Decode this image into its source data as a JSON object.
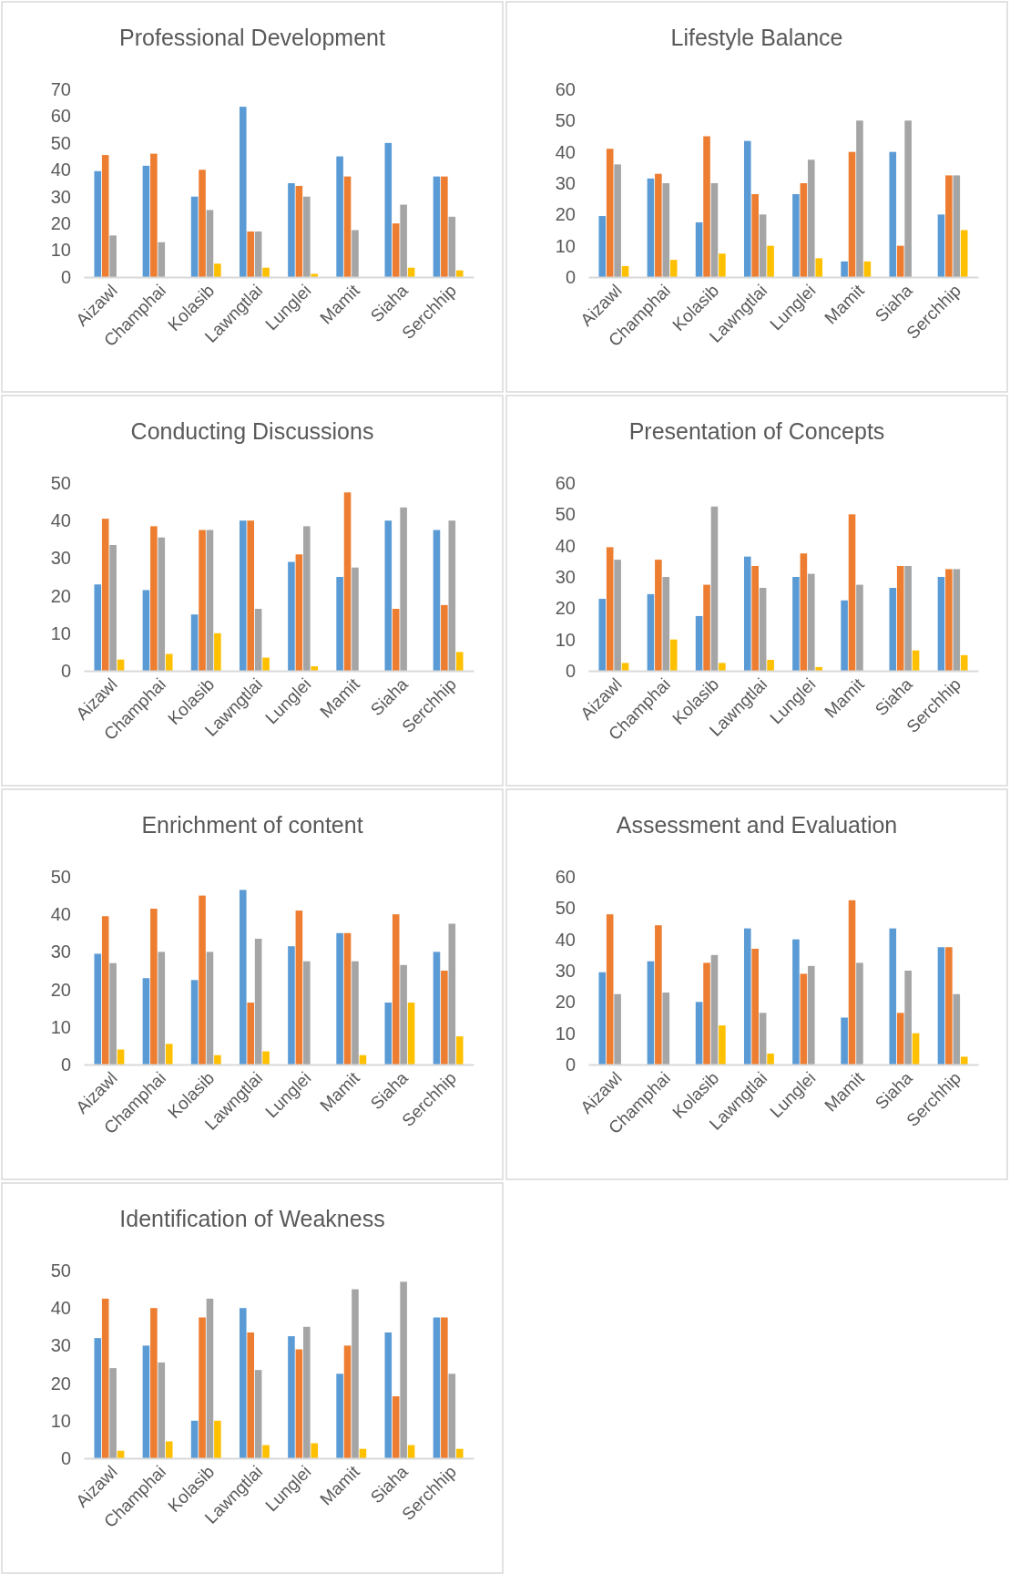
{
  "chart_data": [
    {
      "type": "bar",
      "title": "Professional Development",
      "categories": [
        "Aizawl",
        "Champhai",
        "Kolasib",
        "Lawngtlai",
        "Lunglei",
        "Mamit",
        "Siaha",
        "Serchhip"
      ],
      "ylim": [
        0,
        70
      ],
      "yticks": [
        0,
        10,
        20,
        30,
        40,
        50,
        60,
        70
      ],
      "series": [
        {
          "color": "#5b9bd5",
          "values": [
            39.5,
            41.5,
            30,
            63.5,
            35,
            45,
            50,
            37.5
          ]
        },
        {
          "color": "#ed7d31",
          "values": [
            45.5,
            46,
            40,
            17,
            34,
            37.5,
            20,
            37.5
          ]
        },
        {
          "color": "#a5a5a5",
          "values": [
            15.5,
            13,
            25,
            17,
            30,
            17.5,
            27,
            22.5
          ]
        },
        {
          "color": "#ffc000",
          "values": [
            null,
            null,
            5,
            3.5,
            1.2,
            null,
            3.5,
            2.5
          ]
        }
      ]
    },
    {
      "type": "bar",
      "title": "Lifestyle Balance",
      "categories": [
        "Aizawl",
        "Champhai",
        "Kolasib",
        "Lawngtlai",
        "Lunglei",
        "Mamit",
        "Siaha",
        "Serchhip"
      ],
      "ylim": [
        0,
        60
      ],
      "yticks": [
        0,
        10,
        20,
        30,
        40,
        50,
        60
      ],
      "series": [
        {
          "color": "#5b9bd5",
          "values": [
            19.5,
            31.5,
            17.5,
            43.5,
            26.5,
            5,
            40,
            20
          ]
        },
        {
          "color": "#ed7d31",
          "values": [
            41,
            33,
            45,
            26.5,
            30,
            40,
            10,
            32.5
          ]
        },
        {
          "color": "#a5a5a5",
          "values": [
            36,
            30,
            30,
            20,
            37.5,
            50,
            50,
            32.5
          ]
        },
        {
          "color": "#ffc000",
          "values": [
            3.5,
            5.5,
            7.5,
            10,
            6,
            5,
            null,
            15
          ]
        }
      ]
    },
    {
      "type": "bar",
      "title": "Conducting Discussions",
      "categories": [
        "Aizawl",
        "Champhai",
        "Kolasib",
        "Lawngtlai",
        "Lunglei",
        "Mamit",
        "Siaha",
        "Serchhip"
      ],
      "ylim": [
        0,
        50
      ],
      "yticks": [
        0,
        10,
        20,
        30,
        40,
        50
      ],
      "series": [
        {
          "color": "#5b9bd5",
          "values": [
            23,
            21.5,
            15,
            40,
            29,
            25,
            40,
            37.5
          ]
        },
        {
          "color": "#ed7d31",
          "values": [
            40.5,
            38.5,
            37.5,
            40,
            31,
            47.5,
            16.5,
            17.5
          ]
        },
        {
          "color": "#a5a5a5",
          "values": [
            33.5,
            35.5,
            37.5,
            16.5,
            38.5,
            27.5,
            43.5,
            40
          ]
        },
        {
          "color": "#ffc000",
          "values": [
            3,
            4.5,
            10,
            3.5,
            1.2,
            null,
            null,
            5
          ]
        }
      ]
    },
    {
      "type": "bar",
      "title": "Presentation of Concepts",
      "categories": [
        "Aizawl",
        "Champhai",
        "Kolasib",
        "Lawngtlai",
        "Lunglei",
        "Mamit",
        "Siaha",
        "Serchhip"
      ],
      "ylim": [
        0,
        60
      ],
      "yticks": [
        0,
        10,
        20,
        30,
        40,
        50,
        60
      ],
      "series": [
        {
          "color": "#5b9bd5",
          "values": [
            23,
            24.5,
            17.5,
            36.5,
            30,
            22.5,
            26.5,
            30
          ]
        },
        {
          "color": "#ed7d31",
          "values": [
            39.5,
            35.5,
            27.5,
            33.5,
            37.5,
            50,
            33.5,
            32.5
          ]
        },
        {
          "color": "#a5a5a5",
          "values": [
            35.5,
            30,
            52.5,
            26.5,
            31,
            27.5,
            33.5,
            32.5
          ]
        },
        {
          "color": "#ffc000",
          "values": [
            2.5,
            10,
            2.5,
            3.5,
            1.2,
            null,
            6.5,
            5
          ]
        }
      ]
    },
    {
      "type": "bar",
      "title": "Enrichment of content",
      "categories": [
        "Aizawl",
        "Champhai",
        "Kolasib",
        "Lawngtlai",
        "Lunglei",
        "Mamit",
        "Siaha",
        "Serchhip"
      ],
      "ylim": [
        0,
        50
      ],
      "yticks": [
        0,
        10,
        20,
        30,
        40,
        50
      ],
      "series": [
        {
          "color": "#5b9bd5",
          "values": [
            29.5,
            23,
            22.5,
            46.5,
            31.5,
            35,
            16.5,
            30
          ]
        },
        {
          "color": "#ed7d31",
          "values": [
            39.5,
            41.5,
            45,
            16.5,
            41,
            35,
            40,
            25
          ]
        },
        {
          "color": "#a5a5a5",
          "values": [
            27,
            30,
            30,
            33.5,
            27.5,
            27.5,
            26.5,
            37.5
          ]
        },
        {
          "color": "#ffc000",
          "values": [
            4,
            5.5,
            2.5,
            3.5,
            null,
            2.5,
            16.5,
            7.5
          ]
        }
      ]
    },
    {
      "type": "bar",
      "title": "Assessment and Evaluation",
      "categories": [
        "Aizawl",
        "Champhai",
        "Kolasib",
        "Lawngtlai",
        "Lunglei",
        "Mamit",
        "Siaha",
        "Serchhip"
      ],
      "ylim": [
        0,
        60
      ],
      "yticks": [
        0,
        10,
        20,
        30,
        40,
        50,
        60
      ],
      "series": [
        {
          "color": "#5b9bd5",
          "values": [
            29.5,
            33,
            20,
            43.5,
            40,
            15,
            43.5,
            37.5
          ]
        },
        {
          "color": "#ed7d31",
          "values": [
            48,
            44.5,
            32.5,
            37,
            29,
            52.5,
            16.5,
            37.5
          ]
        },
        {
          "color": "#a5a5a5",
          "values": [
            22.5,
            23,
            35,
            16.5,
            31.5,
            32.5,
            30,
            22.5
          ]
        },
        {
          "color": "#ffc000",
          "values": [
            null,
            null,
            12.5,
            3.5,
            null,
            null,
            10,
            2.5
          ]
        }
      ]
    },
    {
      "type": "bar",
      "title": "Identification of Weakness",
      "categories": [
        "Aizawl",
        "Champhai",
        "Kolasib",
        "Lawngtlai",
        "Lunglei",
        "Mamit",
        "Siaha",
        "Serchhip"
      ],
      "ylim": [
        0,
        50
      ],
      "yticks": [
        0,
        10,
        20,
        30,
        40,
        50
      ],
      "series": [
        {
          "color": "#5b9bd5",
          "values": [
            32,
            30,
            10,
            40,
            32.5,
            22.5,
            33.5,
            37.5
          ]
        },
        {
          "color": "#ed7d31",
          "values": [
            42.5,
            40,
            37.5,
            33.5,
            29,
            30,
            16.5,
            37.5
          ]
        },
        {
          "color": "#a5a5a5",
          "values": [
            24,
            25.5,
            42.5,
            23.5,
            35,
            45,
            47,
            22.5
          ]
        },
        {
          "color": "#ffc000",
          "values": [
            2,
            4.5,
            10,
            3.5,
            4,
            2.5,
            3.5,
            2.5
          ]
        }
      ]
    }
  ]
}
